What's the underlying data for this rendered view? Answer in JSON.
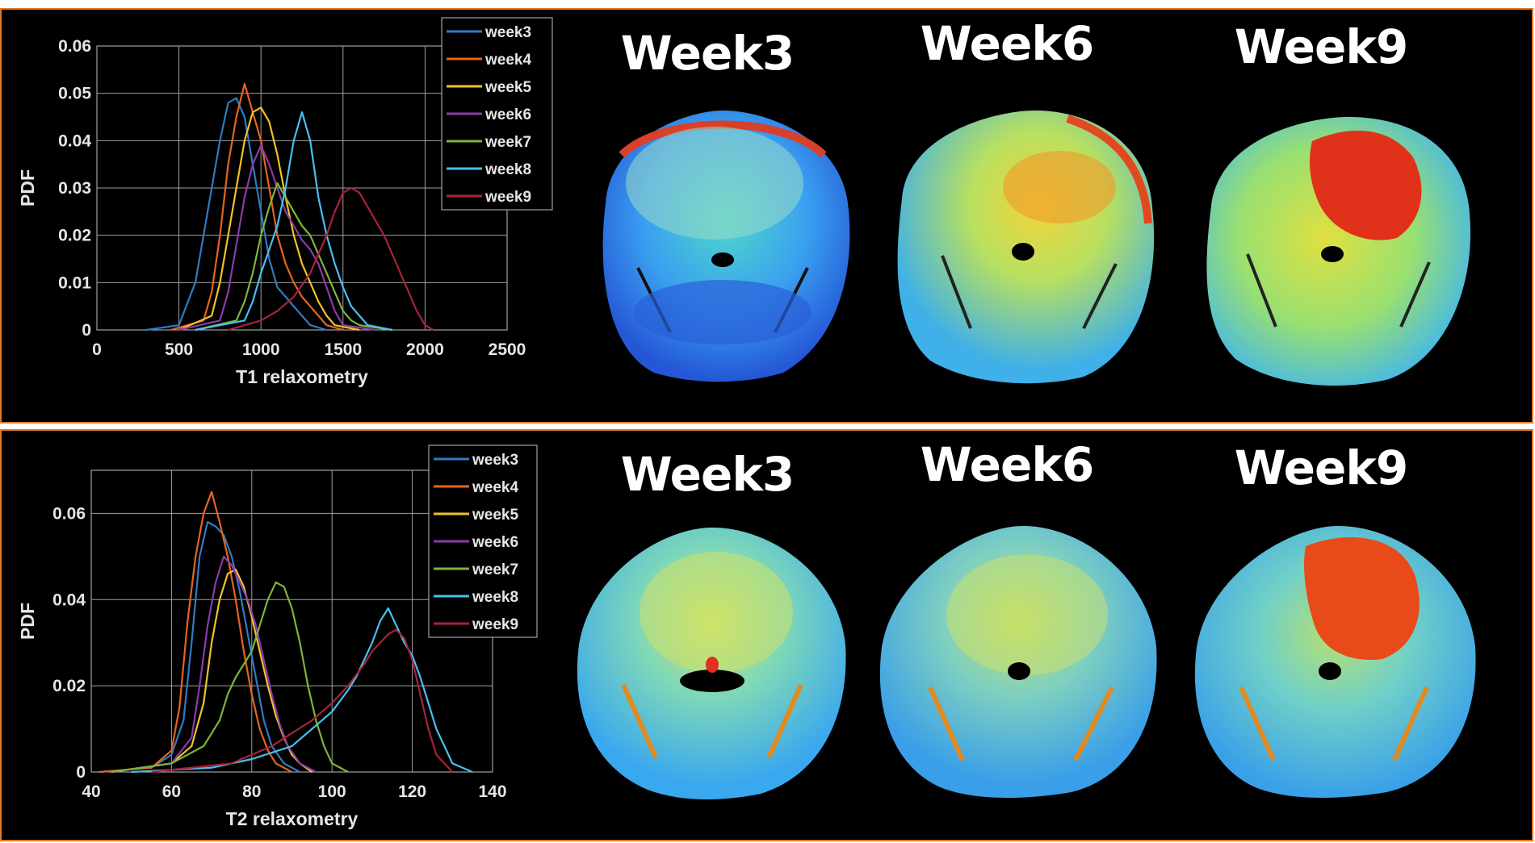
{
  "colors": {
    "border": "#e07a2a",
    "series": [
      "#2f7bc4",
      "#e8641e",
      "#f2c22a",
      "#8c3aa8",
      "#7db53a",
      "#49c0ee",
      "#a8233a"
    ]
  },
  "panels": [
    {
      "titles": [
        "Week3",
        "Week6",
        "Week9"
      ]
    },
    {
      "titles": [
        "Week3",
        "Week6",
        "Week9"
      ]
    }
  ],
  "chart_data": [
    {
      "type": "line",
      "xlabel": "T1 relaxometry",
      "ylabel": "PDF",
      "xlim": [
        0,
        2500
      ],
      "ylim": [
        0,
        0.06
      ],
      "xticks": [
        "0",
        "500",
        "1000",
        "1500",
        "2000",
        "2500"
      ],
      "yticks": [
        "0",
        "0.01",
        "0.02",
        "0.03",
        "0.04",
        "0.05",
        "0.06"
      ],
      "grid": true,
      "legend_position": "top-right",
      "series": [
        {
          "name": "week3",
          "x": [
            300,
            500,
            600,
            650,
            700,
            750,
            800,
            850,
            900,
            950,
            1000,
            1050,
            1100,
            1150,
            1200,
            1250,
            1300,
            1400
          ],
          "y": [
            0,
            0.001,
            0.01,
            0.02,
            0.03,
            0.04,
            0.048,
            0.049,
            0.045,
            0.035,
            0.025,
            0.015,
            0.009,
            0.007,
            0.005,
            0.003,
            0.001,
            0
          ]
        },
        {
          "name": "week4",
          "x": [
            450,
            650,
            700,
            750,
            800,
            850,
            900,
            950,
            1000,
            1050,
            1100,
            1150,
            1200,
            1250,
            1300,
            1350,
            1400,
            1500
          ],
          "y": [
            0,
            0.002,
            0.008,
            0.02,
            0.035,
            0.045,
            0.052,
            0.046,
            0.04,
            0.03,
            0.02,
            0.014,
            0.01,
            0.007,
            0.005,
            0.003,
            0.001,
            0
          ]
        },
        {
          "name": "week5",
          "x": [
            500,
            700,
            750,
            800,
            850,
            900,
            950,
            1000,
            1050,
            1100,
            1150,
            1200,
            1250,
            1300,
            1350,
            1400,
            1450,
            1600
          ],
          "y": [
            0,
            0.003,
            0.01,
            0.02,
            0.03,
            0.04,
            0.046,
            0.047,
            0.044,
            0.037,
            0.028,
            0.02,
            0.014,
            0.01,
            0.006,
            0.003,
            0.001,
            0
          ]
        },
        {
          "name": "week6",
          "x": [
            500,
            750,
            800,
            850,
            900,
            950,
            1000,
            1050,
            1100,
            1150,
            1200,
            1250,
            1300,
            1350,
            1400,
            1450,
            1500,
            1700
          ],
          "y": [
            0,
            0.002,
            0.008,
            0.018,
            0.028,
            0.035,
            0.039,
            0.035,
            0.03,
            0.025,
            0.022,
            0.019,
            0.017,
            0.014,
            0.009,
            0.004,
            0.001,
            0
          ]
        },
        {
          "name": "week7",
          "x": [
            600,
            850,
            900,
            950,
            1000,
            1050,
            1100,
            1150,
            1200,
            1250,
            1300,
            1350,
            1400,
            1450,
            1500,
            1550,
            1600,
            1800
          ],
          "y": [
            0,
            0.002,
            0.006,
            0.012,
            0.02,
            0.026,
            0.031,
            0.028,
            0.025,
            0.022,
            0.02,
            0.016,
            0.012,
            0.008,
            0.004,
            0.002,
            0.001,
            0
          ]
        },
        {
          "name": "week8",
          "x": [
            600,
            900,
            950,
            1000,
            1050,
            1100,
            1150,
            1200,
            1250,
            1300,
            1350,
            1400,
            1450,
            1500,
            1550,
            1600,
            1650,
            1800
          ],
          "y": [
            0,
            0.002,
            0.006,
            0.012,
            0.017,
            0.022,
            0.03,
            0.04,
            0.046,
            0.04,
            0.028,
            0.02,
            0.014,
            0.009,
            0.005,
            0.003,
            0.001,
            0
          ]
        },
        {
          "name": "week9",
          "x": [
            800,
            1000,
            1100,
            1200,
            1300,
            1350,
            1400,
            1450,
            1500,
            1550,
            1600,
            1650,
            1700,
            1750,
            1800,
            1850,
            1900,
            1950,
            2000,
            2050
          ],
          "y": [
            0,
            0.002,
            0.004,
            0.007,
            0.012,
            0.016,
            0.02,
            0.025,
            0.029,
            0.03,
            0.029,
            0.026,
            0.023,
            0.02,
            0.016,
            0.012,
            0.008,
            0.004,
            0.001,
            0
          ]
        }
      ]
    },
    {
      "type": "line",
      "xlabel": "T2 relaxometry",
      "ylabel": "PDF",
      "xlim": [
        40,
        140
      ],
      "ylim": [
        0,
        0.07
      ],
      "xticks": [
        "40",
        "60",
        "80",
        "100",
        "120",
        "140"
      ],
      "yticks": [
        "0",
        "0.02",
        "0.04",
        "0.06"
      ],
      "grid": true,
      "legend_position": "top-right",
      "series": [
        {
          "name": "week3",
          "x": [
            42,
            55,
            60,
            63,
            65,
            67,
            69,
            71,
            73,
            75,
            77,
            79,
            81,
            83,
            85,
            88,
            92
          ],
          "y": [
            0,
            0.001,
            0.004,
            0.012,
            0.03,
            0.05,
            0.058,
            0.057,
            0.055,
            0.05,
            0.042,
            0.032,
            0.022,
            0.012,
            0.006,
            0.002,
            0
          ]
        },
        {
          "name": "week4",
          "x": [
            42,
            55,
            60,
            62,
            64,
            66,
            68,
            70,
            72,
            74,
            76,
            78,
            80,
            82,
            84,
            86,
            90
          ],
          "y": [
            0,
            0.001,
            0.005,
            0.015,
            0.035,
            0.05,
            0.06,
            0.065,
            0.058,
            0.05,
            0.04,
            0.028,
            0.018,
            0.01,
            0.005,
            0.002,
            0
          ]
        },
        {
          "name": "week5",
          "x": [
            45,
            60,
            65,
            68,
            70,
            72,
            74,
            76,
            78,
            80,
            82,
            84,
            86,
            88,
            90,
            92,
            95
          ],
          "y": [
            0,
            0.002,
            0.006,
            0.016,
            0.03,
            0.04,
            0.046,
            0.047,
            0.043,
            0.036,
            0.028,
            0.02,
            0.013,
            0.008,
            0.004,
            0.002,
            0
          ]
        },
        {
          "name": "week6",
          "x": [
            45,
            60,
            65,
            67,
            69,
            71,
            73,
            75,
            77,
            79,
            81,
            83,
            85,
            87,
            89,
            92,
            96
          ],
          "y": [
            0,
            0.002,
            0.008,
            0.02,
            0.034,
            0.044,
            0.05,
            0.048,
            0.044,
            0.04,
            0.034,
            0.026,
            0.018,
            0.011,
            0.006,
            0.002,
            0
          ]
        },
        {
          "name": "week7",
          "x": [
            45,
            60,
            68,
            72,
            74,
            76,
            78,
            80,
            82,
            84,
            86,
            88,
            90,
            92,
            94,
            96,
            98,
            100,
            104
          ],
          "y": [
            0,
            0.002,
            0.006,
            0.012,
            0.018,
            0.022,
            0.025,
            0.028,
            0.034,
            0.04,
            0.044,
            0.043,
            0.038,
            0.03,
            0.02,
            0.012,
            0.006,
            0.002,
            0
          ]
        },
        {
          "name": "week8",
          "x": [
            50,
            70,
            80,
            90,
            95,
            100,
            104,
            106,
            108,
            110,
            112,
            114,
            116,
            118,
            120,
            122,
            124,
            126,
            128,
            130,
            135
          ],
          "y": [
            0,
            0.001,
            0.003,
            0.006,
            0.01,
            0.014,
            0.019,
            0.022,
            0.026,
            0.03,
            0.035,
            0.038,
            0.034,
            0.03,
            0.027,
            0.022,
            0.016,
            0.01,
            0.006,
            0.002,
            0
          ]
        },
        {
          "name": "week9",
          "x": [
            55,
            75,
            85,
            95,
            100,
            104,
            108,
            110,
            112,
            114,
            116,
            118,
            120,
            122,
            124,
            126,
            130
          ],
          "y": [
            0,
            0.002,
            0.006,
            0.012,
            0.016,
            0.02,
            0.025,
            0.028,
            0.03,
            0.032,
            0.033,
            0.031,
            0.026,
            0.018,
            0.01,
            0.004,
            0
          ]
        }
      ]
    }
  ]
}
